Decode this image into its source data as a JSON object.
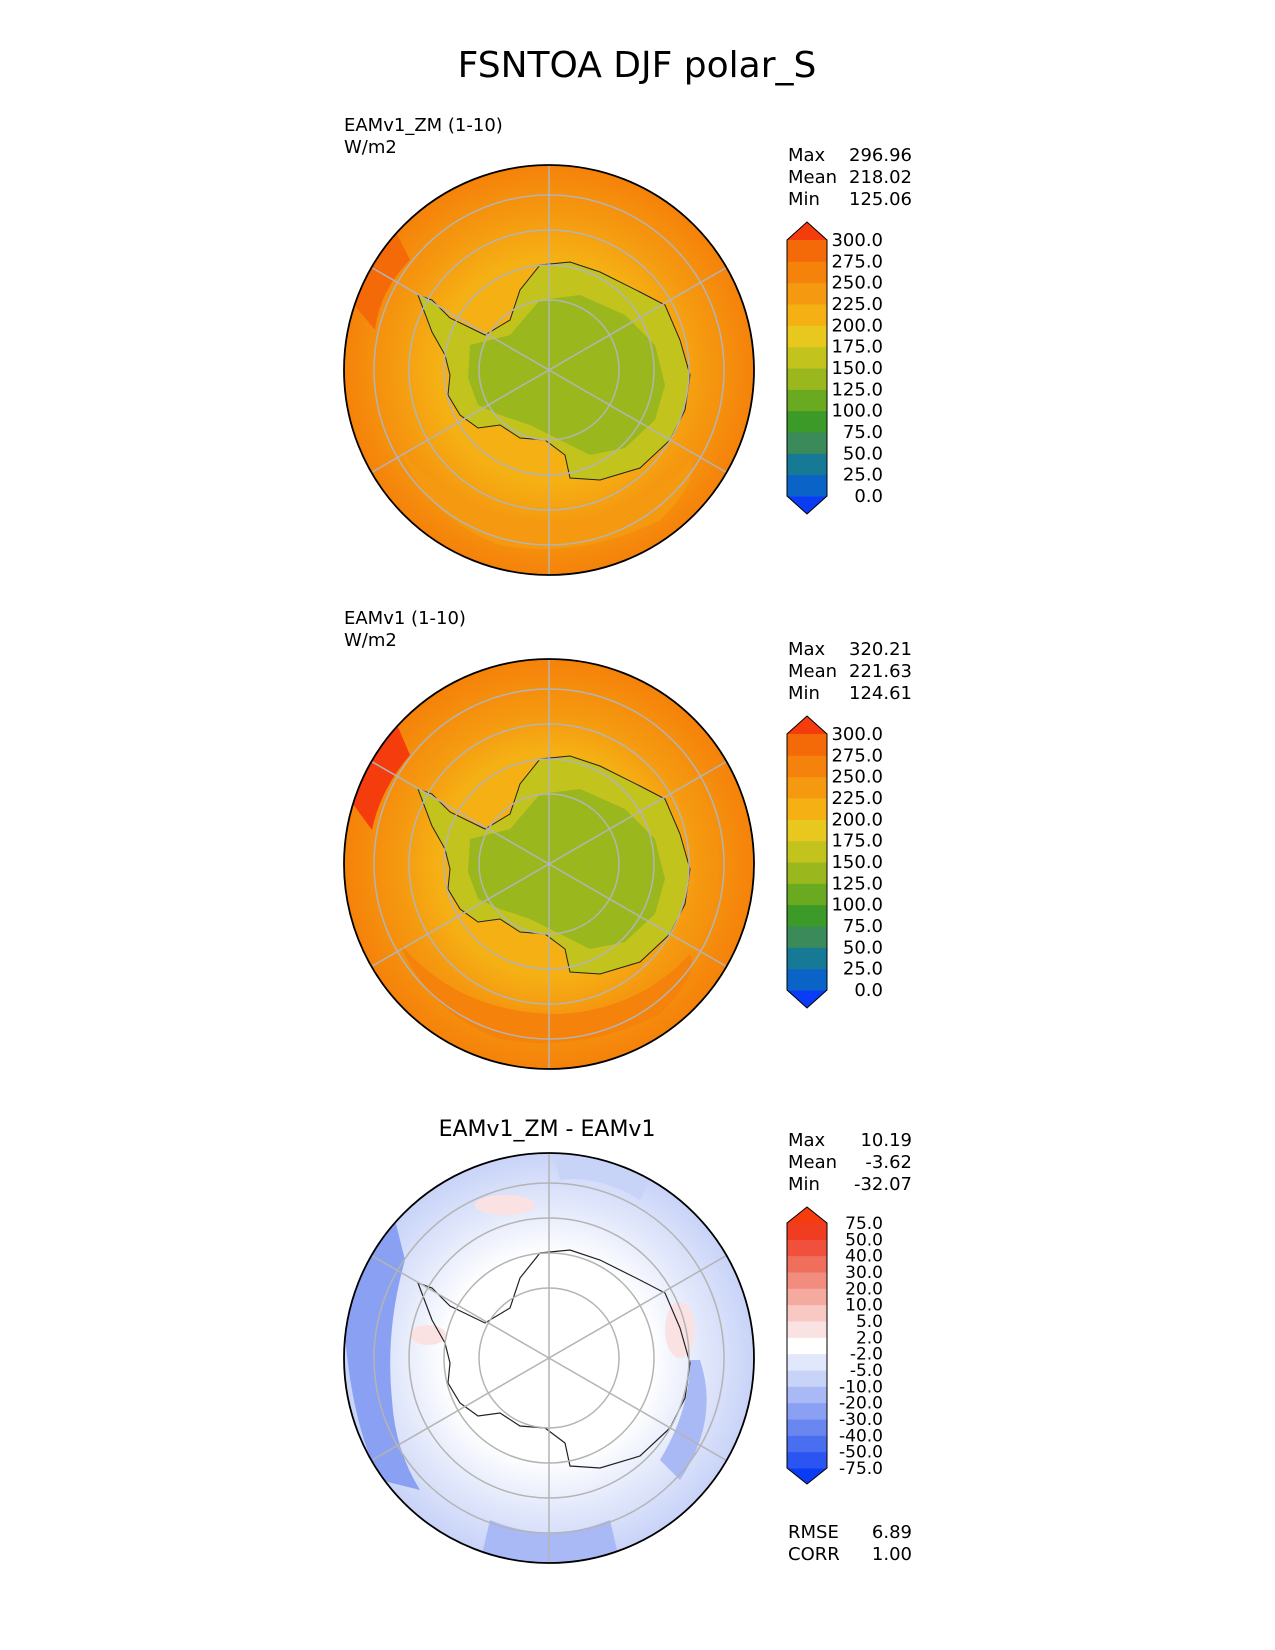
{
  "title": "FSNTOA DJF polar_S",
  "chart_data": [
    {
      "type": "polar-contour-map",
      "region": "polar_S",
      "name": "EAMv1_ZM (1-10)",
      "units": "W/m2",
      "stats": {
        "max": "296.96",
        "mean": "218.02",
        "min": "125.06"
      },
      "stat_labels": {
        "max": "Max",
        "mean": "Mean",
        "min": "Min"
      },
      "levels": [
        "0.0",
        "25.0",
        "50.0",
        "75.0",
        "100.0",
        "125.0",
        "150.0",
        "175.0",
        "200.0",
        "225.0",
        "250.0",
        "275.0",
        "300.0"
      ],
      "colors": [
        "#0a3cf5",
        "#0a64c8",
        "#167a96",
        "#3a8a5a",
        "#3c9a28",
        "#6aaa20",
        "#9ab81e",
        "#c3c31e",
        "#e8c81e",
        "#f5b014",
        "#f59a10",
        "#f5820a",
        "#f56a08",
        "#f53c0c"
      ]
    },
    {
      "type": "polar-contour-map",
      "region": "polar_S",
      "name": "EAMv1 (1-10)",
      "units": "W/m2",
      "stats": {
        "max": "320.21",
        "mean": "221.63",
        "min": "124.61"
      },
      "stat_labels": {
        "max": "Max",
        "mean": "Mean",
        "min": "Min"
      },
      "levels": [
        "0.0",
        "25.0",
        "50.0",
        "75.0",
        "100.0",
        "125.0",
        "150.0",
        "175.0",
        "200.0",
        "225.0",
        "250.0",
        "275.0",
        "300.0"
      ],
      "colors": [
        "#0a3cf5",
        "#0a64c8",
        "#167a96",
        "#3a8a5a",
        "#3c9a28",
        "#6aaa20",
        "#9ab81e",
        "#c3c31e",
        "#e8c81e",
        "#f5b014",
        "#f59a10",
        "#f5820a",
        "#f56a08",
        "#f53c0c"
      ]
    },
    {
      "type": "polar-contour-map",
      "region": "polar_S",
      "name": "EAMv1_ZM - EAMv1",
      "units": "",
      "stats": {
        "max": "10.19",
        "mean": "-3.62",
        "min": "-32.07"
      },
      "stat_labels": {
        "max": "Max",
        "mean": "Mean",
        "min": "Min"
      },
      "levels": [
        "-75.0",
        "-50.0",
        "-40.0",
        "-30.0",
        "-20.0",
        "-10.0",
        "-5.0",
        "-2.0",
        "2.0",
        "5.0",
        "10.0",
        "20.0",
        "30.0",
        "40.0",
        "50.0",
        "75.0"
      ],
      "colors": [
        "#0a3cf5",
        "#2a55f2",
        "#4a6ef0",
        "#6a86f0",
        "#8aa0f2",
        "#a9b9f5",
        "#c8d3f8",
        "#e2e8fb",
        "#ffffff",
        "#fbe2e2",
        "#f8c8c2",
        "#f5aaa0",
        "#f28c7e",
        "#f06e5c",
        "#f0503c",
        "#f03c20",
        "#f53c0c"
      ],
      "rmse_label": "RMSE",
      "rmse": "6.89",
      "corr_label": "CORR",
      "corr": "1.00"
    }
  ]
}
